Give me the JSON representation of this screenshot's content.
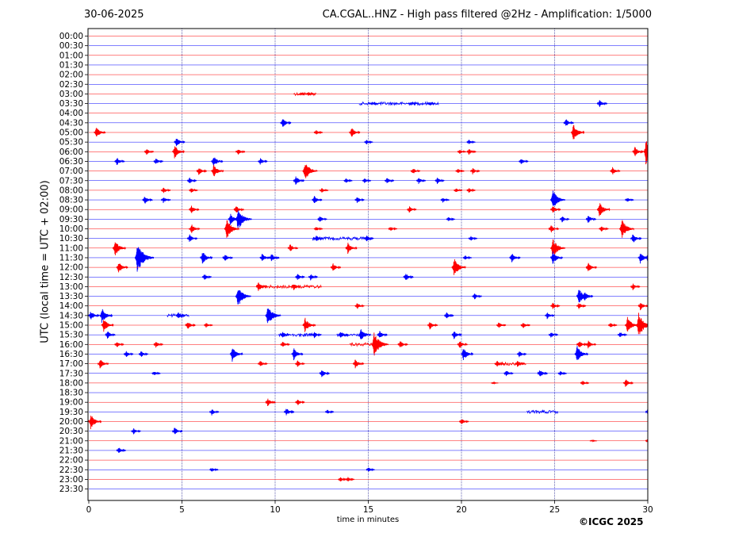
{
  "date": "30-06-2025",
  "title": "CA.CGAL..HNZ - High pass filtered @2Hz - Amplification: 1/5000",
  "copyright": "©ICGC 2025",
  "chart_data": {
    "type": "line",
    "title": "CA.CGAL..HNZ - High pass filtered @2Hz - Amplification: 1/5000",
    "xlabel": "time in minutes",
    "ylabel": "UTC (local time = UTC + 02:00)",
    "xlim": [
      0,
      30
    ],
    "x_ticks": [
      0,
      5,
      10,
      15,
      20,
      25,
      30
    ],
    "y_tick_labels": [
      "00:00",
      "00:30",
      "01:00",
      "01:30",
      "02:00",
      "02:30",
      "03:00",
      "03:30",
      "04:00",
      "04:30",
      "05:00",
      "05:30",
      "06:00",
      "06:30",
      "07:00",
      "07:30",
      "08:00",
      "08:30",
      "09:00",
      "09:30",
      "10:00",
      "10:30",
      "11:00",
      "11:30",
      "12:00",
      "12:30",
      "13:00",
      "13:30",
      "14:00",
      "14:30",
      "15:00",
      "15:30",
      "16:00",
      "16:30",
      "17:00",
      "17:30",
      "18:00",
      "18:30",
      "19:00",
      "19:30",
      "20:00",
      "20:30",
      "21:00",
      "21:30",
      "22:00",
      "22:30",
      "23:00",
      "23:30"
    ],
    "trace_colors": [
      "#ff0000",
      "#0000ff"
    ],
    "grid": "vertical dotted lines at 5-minute ticks",
    "events": [
      {
        "row": 6,
        "minute": 11.8,
        "amp": 0.25
      },
      {
        "row": 6,
        "minute": 11.4,
        "amp": 0.15
      },
      {
        "row": 7,
        "minute": 15.2,
        "amp": 0.2
      },
      {
        "row": 7,
        "minute": 17.3,
        "amp": 0.2
      },
      {
        "row": 7,
        "minute": 18.3,
        "amp": 0.15
      },
      {
        "row": 7,
        "minute": 27.4,
        "amp": 0.5
      },
      {
        "row": 9,
        "minute": 10.4,
        "amp": 0.6
      },
      {
        "row": 9,
        "minute": 25.6,
        "amp": 0.5
      },
      {
        "row": 10,
        "minute": 0.4,
        "amp": 0.7
      },
      {
        "row": 10,
        "minute": 12.2,
        "amp": 0.3
      },
      {
        "row": 10,
        "minute": 14.1,
        "amp": 0.6
      },
      {
        "row": 10,
        "minute": 26.0,
        "amp": 1.0
      },
      {
        "row": 11,
        "minute": 4.7,
        "amp": 0.6
      },
      {
        "row": 11,
        "minute": 14.9,
        "amp": 0.3
      },
      {
        "row": 11,
        "minute": 20.4,
        "amp": 0.3
      },
      {
        "row": 12,
        "minute": 3.1,
        "amp": 0.4
      },
      {
        "row": 12,
        "minute": 4.6,
        "amp": 0.8
      },
      {
        "row": 12,
        "minute": 8.0,
        "amp": 0.4
      },
      {
        "row": 12,
        "minute": 19.9,
        "amp": 0.3
      },
      {
        "row": 12,
        "minute": 20.4,
        "amp": 0.4
      },
      {
        "row": 12,
        "minute": 29.3,
        "amp": 0.6
      },
      {
        "row": 12,
        "minute": 29.9,
        "amp": 1.5
      },
      {
        "row": 13,
        "minute": 1.5,
        "amp": 0.5
      },
      {
        "row": 13,
        "minute": 3.6,
        "amp": 0.4
      },
      {
        "row": 13,
        "minute": 6.7,
        "amp": 0.7
      },
      {
        "row": 13,
        "minute": 9.2,
        "amp": 0.4
      },
      {
        "row": 13,
        "minute": 23.2,
        "amp": 0.4
      },
      {
        "row": 14,
        "minute": 5.9,
        "amp": 0.5
      },
      {
        "row": 14,
        "minute": 6.7,
        "amp": 0.8
      },
      {
        "row": 14,
        "minute": 11.6,
        "amp": 1.2
      },
      {
        "row": 14,
        "minute": 17.4,
        "amp": 0.4
      },
      {
        "row": 14,
        "minute": 19.8,
        "amp": 0.3
      },
      {
        "row": 14,
        "minute": 20.6,
        "amp": 0.4
      },
      {
        "row": 14,
        "minute": 28.1,
        "amp": 0.5
      },
      {
        "row": 15,
        "minute": 5.4,
        "amp": 0.4
      },
      {
        "row": 15,
        "minute": 11.1,
        "amp": 0.6
      },
      {
        "row": 15,
        "minute": 13.8,
        "amp": 0.3
      },
      {
        "row": 15,
        "minute": 14.8,
        "amp": 0.3
      },
      {
        "row": 15,
        "minute": 16.0,
        "amp": 0.4
      },
      {
        "row": 15,
        "minute": 17.7,
        "amp": 0.4
      },
      {
        "row": 15,
        "minute": 18.7,
        "amp": 0.4
      },
      {
        "row": 16,
        "minute": 4.0,
        "amp": 0.4
      },
      {
        "row": 16,
        "minute": 5.5,
        "amp": 0.3
      },
      {
        "row": 16,
        "minute": 12.5,
        "amp": 0.3
      },
      {
        "row": 16,
        "minute": 19.7,
        "amp": 0.3
      },
      {
        "row": 16,
        "minute": 20.4,
        "amp": 0.3
      },
      {
        "row": 17,
        "minute": 3.0,
        "amp": 0.5
      },
      {
        "row": 17,
        "minute": 4.0,
        "amp": 0.4
      },
      {
        "row": 17,
        "minute": 12.1,
        "amp": 0.5
      },
      {
        "row": 17,
        "minute": 14.4,
        "amp": 0.4
      },
      {
        "row": 17,
        "minute": 19.0,
        "amp": 0.3
      },
      {
        "row": 17,
        "minute": 24.9,
        "amp": 1.2
      },
      {
        "row": 17,
        "minute": 28.9,
        "amp": 0.3
      },
      {
        "row": 18,
        "minute": 5.5,
        "amp": 0.5
      },
      {
        "row": 18,
        "minute": 7.9,
        "amp": 0.5
      },
      {
        "row": 18,
        "minute": 17.2,
        "amp": 0.4
      },
      {
        "row": 18,
        "minute": 24.9,
        "amp": 0.5
      },
      {
        "row": 18,
        "minute": 27.4,
        "amp": 0.9
      },
      {
        "row": 19,
        "minute": 7.6,
        "amp": 0.7
      },
      {
        "row": 19,
        "minute": 8.0,
        "amp": 1.4
      },
      {
        "row": 19,
        "minute": 12.4,
        "amp": 0.4
      },
      {
        "row": 19,
        "minute": 19.3,
        "amp": 0.3
      },
      {
        "row": 19,
        "minute": 25.4,
        "amp": 0.4
      },
      {
        "row": 19,
        "minute": 26.8,
        "amp": 0.5
      },
      {
        "row": 20,
        "minute": 5.5,
        "amp": 0.6
      },
      {
        "row": 20,
        "minute": 7.4,
        "amp": 1.2
      },
      {
        "row": 20,
        "minute": 12.2,
        "amp": 0.3
      },
      {
        "row": 20,
        "minute": 16.2,
        "amp": 0.3
      },
      {
        "row": 20,
        "minute": 24.8,
        "amp": 0.5
      },
      {
        "row": 20,
        "minute": 27.5,
        "amp": 0.4
      },
      {
        "row": 20,
        "minute": 28.6,
        "amp": 1.2
      },
      {
        "row": 21,
        "minute": 5.4,
        "amp": 0.5
      },
      {
        "row": 21,
        "minute": 12.2,
        "amp": 0.4
      },
      {
        "row": 21,
        "minute": 14.9,
        "amp": 0.4
      },
      {
        "row": 21,
        "minute": 20.5,
        "amp": 0.3
      },
      {
        "row": 21,
        "minute": 29.2,
        "amp": 0.6
      },
      {
        "row": 22,
        "minute": 1.4,
        "amp": 1.0
      },
      {
        "row": 22,
        "minute": 10.8,
        "amp": 0.5
      },
      {
        "row": 22,
        "minute": 13.9,
        "amp": 0.7
      },
      {
        "row": 22,
        "minute": 24.9,
        "amp": 1.2
      },
      {
        "row": 23,
        "minute": 2.6,
        "amp": 1.8
      },
      {
        "row": 23,
        "minute": 6.1,
        "amp": 0.8
      },
      {
        "row": 23,
        "minute": 7.3,
        "amp": 0.5
      },
      {
        "row": 23,
        "minute": 9.3,
        "amp": 0.5
      },
      {
        "row": 23,
        "minute": 9.8,
        "amp": 0.5
      },
      {
        "row": 23,
        "minute": 20.2,
        "amp": 0.3
      },
      {
        "row": 23,
        "minute": 22.7,
        "amp": 0.6
      },
      {
        "row": 23,
        "minute": 24.9,
        "amp": 0.8
      },
      {
        "row": 23,
        "minute": 29.6,
        "amp": 0.7
      },
      {
        "row": 23,
        "minute": 30.0,
        "amp": 0.6
      },
      {
        "row": 24,
        "minute": 1.6,
        "amp": 0.7
      },
      {
        "row": 24,
        "minute": 13.1,
        "amp": 0.5
      },
      {
        "row": 24,
        "minute": 19.6,
        "amp": 1.1
      },
      {
        "row": 24,
        "minute": 26.8,
        "amp": 0.6
      },
      {
        "row": 25,
        "minute": 6.2,
        "amp": 0.4
      },
      {
        "row": 25,
        "minute": 11.2,
        "amp": 0.4
      },
      {
        "row": 25,
        "minute": 11.9,
        "amp": 0.4
      },
      {
        "row": 25,
        "minute": 17.0,
        "amp": 0.5
      },
      {
        "row": 26,
        "minute": 9.1,
        "amp": 0.6
      },
      {
        "row": 26,
        "minute": 11.0,
        "amp": 0.4
      },
      {
        "row": 26,
        "minute": 29.2,
        "amp": 0.4
      },
      {
        "row": 27,
        "minute": 8.0,
        "amp": 1.3
      },
      {
        "row": 27,
        "minute": 20.7,
        "amp": 0.4
      },
      {
        "row": 27,
        "minute": 26.3,
        "amp": 1.0
      },
      {
        "row": 27,
        "minute": 26.6,
        "amp": 0.6
      },
      {
        "row": 28,
        "minute": 14.4,
        "amp": 0.4
      },
      {
        "row": 28,
        "minute": 24.9,
        "amp": 0.4
      },
      {
        "row": 28,
        "minute": 26.3,
        "amp": 0.4
      },
      {
        "row": 28,
        "minute": 29.6,
        "amp": 0.5
      },
      {
        "row": 29,
        "minute": 0.1,
        "amp": 0.6
      },
      {
        "row": 29,
        "minute": 0.7,
        "amp": 0.9
      },
      {
        "row": 29,
        "minute": 4.8,
        "amp": 0.4
      },
      {
        "row": 29,
        "minute": 9.6,
        "amp": 1.3
      },
      {
        "row": 29,
        "minute": 19.2,
        "amp": 0.4
      },
      {
        "row": 29,
        "minute": 24.6,
        "amp": 0.4
      },
      {
        "row": 30,
        "minute": 0.8,
        "amp": 0.8
      },
      {
        "row": 30,
        "minute": 5.3,
        "amp": 0.5
      },
      {
        "row": 30,
        "minute": 6.3,
        "amp": 0.3
      },
      {
        "row": 30,
        "minute": 11.6,
        "amp": 0.9
      },
      {
        "row": 30,
        "minute": 18.3,
        "amp": 0.5
      },
      {
        "row": 30,
        "minute": 22.0,
        "amp": 0.4
      },
      {
        "row": 30,
        "minute": 23.3,
        "amp": 0.4
      },
      {
        "row": 30,
        "minute": 28.0,
        "amp": 0.3
      },
      {
        "row": 30,
        "minute": 28.9,
        "amp": 1.0
      },
      {
        "row": 30,
        "minute": 29.5,
        "amp": 1.5
      },
      {
        "row": 31,
        "minute": 1.0,
        "amp": 0.5
      },
      {
        "row": 31,
        "minute": 10.4,
        "amp": 0.4
      },
      {
        "row": 31,
        "minute": 12.1,
        "amp": 0.4
      },
      {
        "row": 31,
        "minute": 13.5,
        "amp": 0.5
      },
      {
        "row": 31,
        "minute": 14.6,
        "amp": 0.8
      },
      {
        "row": 31,
        "minute": 15.6,
        "amp": 0.5
      },
      {
        "row": 31,
        "minute": 19.6,
        "amp": 0.5
      },
      {
        "row": 31,
        "minute": 24.8,
        "amp": 0.4
      },
      {
        "row": 31,
        "minute": 28.5,
        "amp": 0.4
      },
      {
        "row": 32,
        "minute": 1.5,
        "amp": 0.4
      },
      {
        "row": 32,
        "minute": 3.6,
        "amp": 0.4
      },
      {
        "row": 32,
        "minute": 10.4,
        "amp": 0.4
      },
      {
        "row": 32,
        "minute": 15.3,
        "amp": 1.5
      },
      {
        "row": 32,
        "minute": 16.7,
        "amp": 0.5
      },
      {
        "row": 32,
        "minute": 19.9,
        "amp": 0.5
      },
      {
        "row": 32,
        "minute": 26.3,
        "amp": 0.5
      },
      {
        "row": 32,
        "minute": 26.8,
        "amp": 0.5
      },
      {
        "row": 33,
        "minute": 2.0,
        "amp": 0.4
      },
      {
        "row": 33,
        "minute": 2.8,
        "amp": 0.4
      },
      {
        "row": 33,
        "minute": 7.7,
        "amp": 0.9
      },
      {
        "row": 33,
        "minute": 11.0,
        "amp": 0.7
      },
      {
        "row": 33,
        "minute": 20.1,
        "amp": 0.8
      },
      {
        "row": 33,
        "minute": 23.1,
        "amp": 0.4
      },
      {
        "row": 33,
        "minute": 26.2,
        "amp": 1.0
      },
      {
        "row": 34,
        "minute": 0.6,
        "amp": 0.6
      },
      {
        "row": 34,
        "minute": 9.2,
        "amp": 0.4
      },
      {
        "row": 34,
        "minute": 11.2,
        "amp": 0.4
      },
      {
        "row": 34,
        "minute": 14.3,
        "amp": 0.6
      },
      {
        "row": 34,
        "minute": 21.9,
        "amp": 0.4
      },
      {
        "row": 34,
        "minute": 23.0,
        "amp": 0.4
      },
      {
        "row": 35,
        "minute": 3.5,
        "amp": 0.3
      },
      {
        "row": 35,
        "minute": 12.5,
        "amp": 0.5
      },
      {
        "row": 35,
        "minute": 22.4,
        "amp": 0.4
      },
      {
        "row": 35,
        "minute": 24.2,
        "amp": 0.5
      },
      {
        "row": 35,
        "minute": 25.3,
        "amp": 0.3
      },
      {
        "row": 36,
        "minute": 21.7,
        "amp": 0.1
      },
      {
        "row": 36,
        "minute": 26.5,
        "amp": 0.3
      },
      {
        "row": 36,
        "minute": 28.8,
        "amp": 0.5
      },
      {
        "row": 38,
        "minute": 9.6,
        "amp": 0.5
      },
      {
        "row": 38,
        "minute": 11.2,
        "amp": 0.4
      },
      {
        "row": 39,
        "minute": 6.6,
        "amp": 0.4
      },
      {
        "row": 39,
        "minute": 10.6,
        "amp": 0.5
      },
      {
        "row": 39,
        "minute": 12.8,
        "amp": 0.3
      },
      {
        "row": 39,
        "minute": 30.0,
        "amp": 0.5
      },
      {
        "row": 40,
        "minute": 0.1,
        "amp": 0.9
      },
      {
        "row": 40,
        "minute": 20.0,
        "amp": 0.4
      },
      {
        "row": 41,
        "minute": 2.4,
        "amp": 0.4
      },
      {
        "row": 41,
        "minute": 4.6,
        "amp": 0.5
      },
      {
        "row": 42,
        "minute": 27.0,
        "amp": 0.1
      },
      {
        "row": 42,
        "minute": 30.0,
        "amp": 0.4
      },
      {
        "row": 43,
        "minute": 1.6,
        "amp": 0.4
      },
      {
        "row": 45,
        "minute": 6.6,
        "amp": 0.3
      },
      {
        "row": 45,
        "minute": 15.0,
        "amp": 0.3
      },
      {
        "row": 46,
        "minute": 13.5,
        "amp": 0.3
      },
      {
        "row": 46,
        "minute": 13.9,
        "amp": 0.3
      }
    ],
    "noise_bursts": [
      {
        "row": 6,
        "start": 11.0,
        "end": 12.2
      },
      {
        "row": 7,
        "start": 14.5,
        "end": 18.8
      },
      {
        "row": 21,
        "start": 12.0,
        "end": 15.2
      },
      {
        "row": 26,
        "start": 9.0,
        "end": 12.5
      },
      {
        "row": 29,
        "start": 4.2,
        "end": 5.4
      },
      {
        "row": 31,
        "start": 10.2,
        "end": 12.2
      },
      {
        "row": 31,
        "start": 13.3,
        "end": 15.0
      },
      {
        "row": 32,
        "start": 14.0,
        "end": 15.8
      },
      {
        "row": 34,
        "start": 22.0,
        "end": 23.5
      },
      {
        "row": 39,
        "start": 23.5,
        "end": 25.2
      }
    ]
  }
}
